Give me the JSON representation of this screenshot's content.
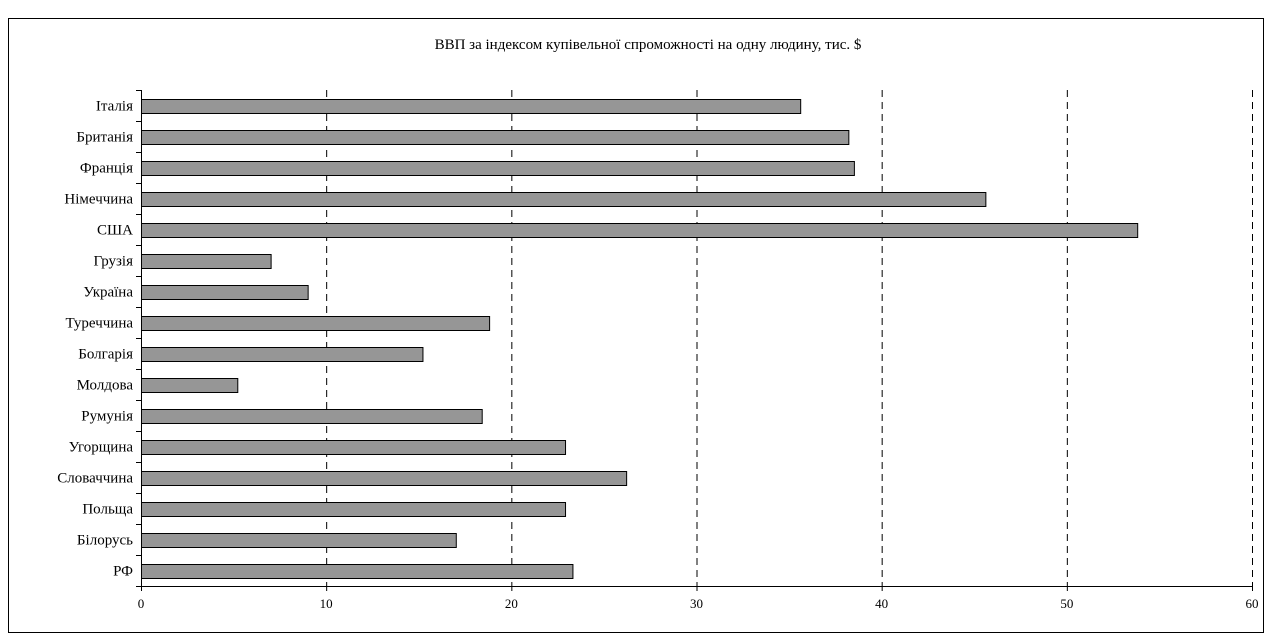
{
  "chart_data": {
    "type": "bar",
    "orientation": "horizontal",
    "title": "ВВП за індексом купівельної спроможності на одну людину, тис. $",
    "xlabel": "",
    "ylabel": "",
    "xlim": [
      0,
      60
    ],
    "x_ticks": [
      0,
      10,
      20,
      30,
      40,
      50,
      60
    ],
    "grid": "vertical dashed",
    "legend": "none",
    "bar_color": "#969696",
    "categories": [
      "РФ",
      "Білорусь",
      "Польща",
      "Словаччина",
      "Угорщина",
      "Румунія",
      "Молдова",
      "Болгарія",
      "Туреччина",
      "Україна",
      "Грузія",
      "США",
      "Німеччина",
      "Франція",
      "Британія",
      "Італія"
    ],
    "values": [
      23.3,
      17.0,
      22.9,
      26.2,
      22.9,
      18.4,
      5.2,
      15.2,
      18.8,
      9.0,
      7.0,
      53.8,
      45.6,
      38.5,
      38.2,
      35.6
    ]
  }
}
